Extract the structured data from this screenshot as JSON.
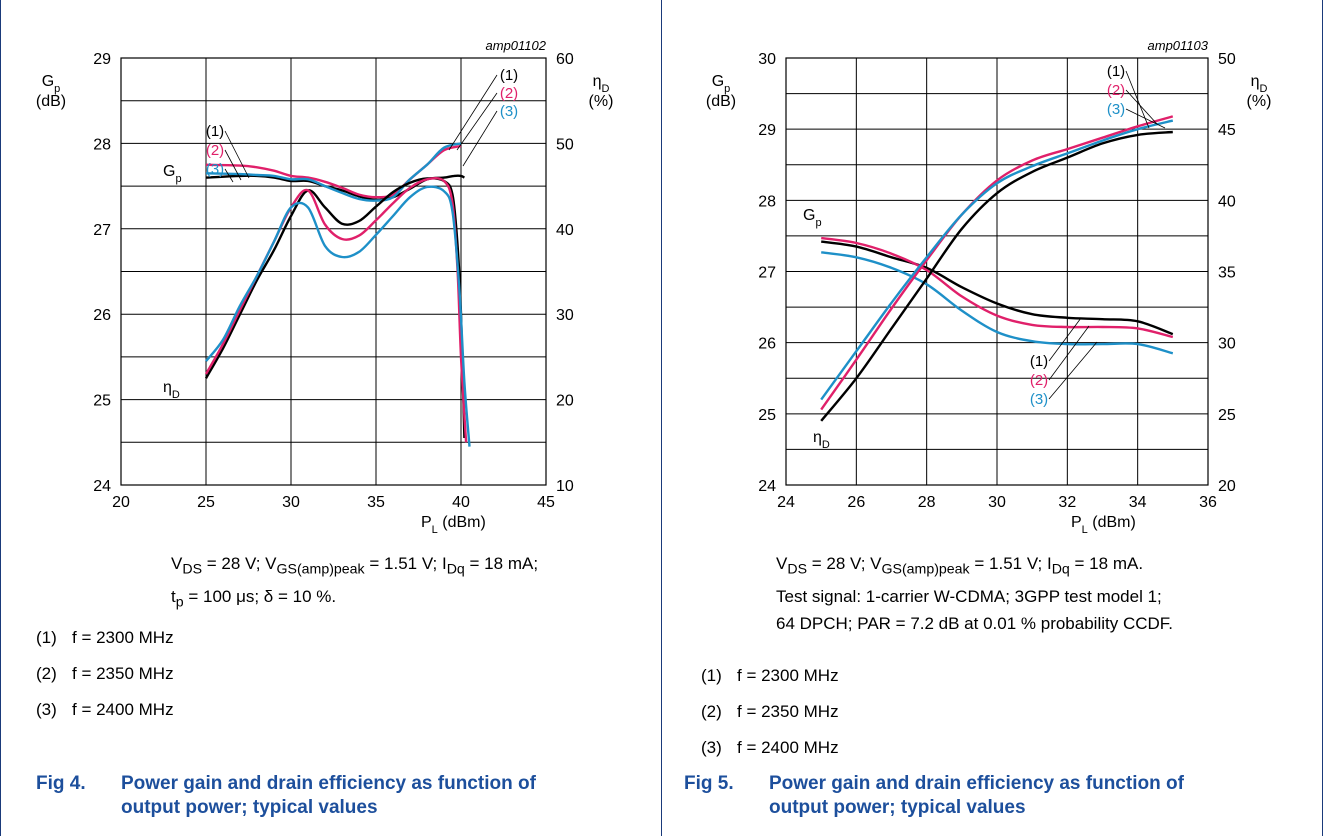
{
  "colors": {
    "c1": "#000000",
    "c2": "#e0206a",
    "c3": "#1e90c8",
    "figtitle": "#1d4f9c",
    "border": "#1a3a7a"
  },
  "fig4": {
    "fig_label": "Fig 4.",
    "fig_title": "Power gain and drain efficiency as function of output power; typical values",
    "cond_line1_html": "V<sub>DS</sub> = 28 V; V<sub>GS(amp)peak</sub> = 1.51 V; I<sub>Dq</sub> = 18 mA;",
    "cond_line2_html": "t<sub>p</sub> = 100 μs; δ = 10 %.",
    "list": [
      {
        "n": "(1)",
        "text": "f = 2300 MHz"
      },
      {
        "n": "(2)",
        "text": "f = 2350 MHz"
      },
      {
        "n": "(3)",
        "text": "f = 2400 MHz"
      }
    ],
    "chart_data": {
      "type": "line",
      "code": "amp01102",
      "xlabel_html": "P<tspan baseline-shift='sub' font-size='11'>L</tspan> (dBm)",
      "ylabel_left_html": [
        "G<tspan baseline-shift='sub' font-size='11'>p</tspan>",
        "(dB)"
      ],
      "ylabel_right_html": [
        "η<tspan baseline-shift='sub' font-size='11'>D</tspan>",
        "(%)"
      ],
      "xlim": [
        20,
        45
      ],
      "ylim_left": [
        24,
        29
      ],
      "ylim_right": [
        10,
        60
      ],
      "x_ticks": [
        20,
        25,
        30,
        35,
        40,
        45
      ],
      "y_left_ticks": [
        24,
        25,
        26,
        27,
        28,
        29
      ],
      "y_right_ticks": [
        10,
        20,
        30,
        40,
        50,
        60
      ],
      "grid": true,
      "labels": {
        "gp": "G<tspan baseline-shift='sub' font-size='11'>p</tspan>",
        "eta": "η<tspan baseline-shift='sub' font-size='11'>D</tspan>",
        "n1": "(1)",
        "n2": "(2)",
        "n3": "(3)"
      },
      "series": [
        {
          "name": "(1)",
          "group": "Gp",
          "axis": "left",
          "color": "#000000",
          "x": [
            25,
            27,
            28,
            29,
            30,
            31,
            32,
            33,
            34,
            35,
            36,
            37,
            38,
            39,
            39.6,
            40,
            40.2
          ],
          "y": [
            27.6,
            27.62,
            27.62,
            27.6,
            27.56,
            27.56,
            27.5,
            27.45,
            27.38,
            27.34,
            27.37,
            27.47,
            27.58,
            27.6,
            27.62,
            27.62,
            27.6
          ]
        },
        {
          "name": "(2)",
          "group": "Gp",
          "axis": "left",
          "color": "#e0206a",
          "x": [
            25,
            27,
            28,
            29,
            30,
            31,
            32,
            33,
            34,
            35,
            36,
            37,
            38,
            39,
            40
          ],
          "y": [
            27.75,
            27.74,
            27.72,
            27.68,
            27.62,
            27.6,
            27.55,
            27.48,
            27.4,
            27.37,
            27.4,
            27.58,
            27.75,
            27.92,
            27.97
          ]
        },
        {
          "name": "(3)",
          "group": "Gp",
          "axis": "left",
          "color": "#1e90c8",
          "x": [
            25,
            27,
            28,
            29,
            30,
            31,
            32,
            33,
            34,
            35,
            36,
            37,
            38,
            39,
            40
          ],
          "y": [
            27.65,
            27.64,
            27.63,
            27.62,
            27.58,
            27.58,
            27.5,
            27.42,
            27.35,
            27.33,
            27.37,
            27.58,
            27.75,
            27.95,
            28.0
          ]
        },
        {
          "name": "(1)",
          "group": "eta",
          "axis": "right",
          "color": "#000000",
          "x": [
            25,
            26,
            27,
            28,
            29,
            30,
            31,
            32,
            33,
            34,
            35,
            36,
            37,
            38,
            39,
            39.5,
            39.8,
            40,
            40.2
          ],
          "y": [
            22.5,
            26,
            30,
            34,
            37.5,
            41.5,
            44.5,
            42.5,
            40.6,
            40.9,
            42.6,
            44.3,
            45.4,
            45.9,
            45.6,
            44,
            38,
            30,
            15.5
          ]
        },
        {
          "name": "(2)",
          "group": "eta",
          "axis": "right",
          "color": "#e0206a",
          "x": [
            25,
            26,
            27,
            28,
            29,
            30,
            31,
            32,
            33,
            34,
            35,
            36,
            37,
            38,
            39,
            39.5,
            39.8,
            40,
            40.3
          ],
          "y": [
            23,
            26.5,
            30.5,
            34.5,
            38.5,
            42.5,
            44.5,
            40.5,
            38.8,
            39.2,
            41,
            43,
            44.8,
            45.8,
            45.6,
            43,
            35,
            25,
            15
          ]
        },
        {
          "name": "(3)",
          "group": "eta",
          "axis": "right",
          "color": "#1e90c8",
          "x": [
            25,
            26,
            27,
            28,
            29,
            30,
            31,
            32,
            33,
            34,
            35,
            36,
            37,
            38,
            39,
            39.5,
            39.9,
            40.2,
            40.5
          ],
          "y": [
            24.5,
            27,
            31,
            34.5,
            38.5,
            42.5,
            42.5,
            38,
            36.7,
            37.3,
            39.3,
            41.5,
            43.7,
            44.9,
            44.4,
            42,
            33,
            22,
            14.5
          ]
        }
      ]
    }
  },
  "fig5": {
    "fig_label": "Fig 5.",
    "fig_title": "Power gain and drain efficiency as function of output power; typical values",
    "cond_line1_html": "V<sub>DS</sub> = 28 V; V<sub>GS(amp)peak</sub> = 1.51 V; I<sub>Dq</sub> = 18 mA.",
    "cond_line2_html": "Test signal: 1-carrier W-CDMA; 3GPP test model 1;",
    "cond_line3_html": "64 DPCH; PAR = 7.2 dB at 0.01 % probability CCDF.",
    "list": [
      {
        "n": "(1)",
        "text": "f = 2300 MHz"
      },
      {
        "n": "(2)",
        "text": "f = 2350 MHz"
      },
      {
        "n": "(3)",
        "text": "f = 2400 MHz"
      }
    ],
    "chart_data": {
      "type": "line",
      "code": "amp01103",
      "xlabel_html": "P<tspan baseline-shift='sub' font-size='11'>L</tspan> (dBm)",
      "ylabel_left_html": [
        "G<tspan baseline-shift='sub' font-size='11'>p</tspan>",
        "(dB)"
      ],
      "ylabel_right_html": [
        "η<tspan baseline-shift='sub' font-size='11'>D</tspan>",
        "(%)"
      ],
      "xlim": [
        24,
        36
      ],
      "ylim_left": [
        24,
        30
      ],
      "ylim_right": [
        20,
        50
      ],
      "x_ticks": [
        24,
        26,
        28,
        30,
        32,
        34,
        36
      ],
      "y_left_ticks": [
        24,
        25,
        26,
        27,
        28,
        29,
        30
      ],
      "y_right_ticks": [
        20,
        25,
        30,
        35,
        40,
        45,
        50
      ],
      "grid": true,
      "labels": {
        "gp": "G<tspan baseline-shift='sub' font-size='11'>p</tspan>",
        "eta": "η<tspan baseline-shift='sub' font-size='11'>D</tspan>",
        "n1": "(1)",
        "n2": "(2)",
        "n3": "(3)"
      },
      "series": [
        {
          "name": "(1)",
          "group": "Gp",
          "axis": "left",
          "color": "#000000",
          "x": [
            25,
            26,
            27,
            28,
            29,
            30,
            31,
            32,
            33,
            34,
            35
          ],
          "y": [
            27.42,
            27.35,
            27.2,
            27.05,
            26.78,
            26.55,
            26.4,
            26.35,
            26.33,
            26.3,
            26.12
          ]
        },
        {
          "name": "(2)",
          "group": "Gp",
          "axis": "left",
          "color": "#e0206a",
          "x": [
            25,
            26,
            27,
            28,
            29,
            30,
            31,
            32,
            33,
            34,
            35
          ],
          "y": [
            27.47,
            27.4,
            27.25,
            27.02,
            26.65,
            26.38,
            26.25,
            26.22,
            26.22,
            26.2,
            26.08
          ]
        },
        {
          "name": "(3)",
          "group": "Gp",
          "axis": "left",
          "color": "#1e90c8",
          "x": [
            25,
            26,
            27,
            28,
            29,
            30,
            31,
            32,
            33,
            34,
            35
          ],
          "y": [
            27.27,
            27.2,
            27.05,
            26.82,
            26.45,
            26.15,
            26.02,
            25.98,
            25.98,
            25.98,
            25.85
          ]
        },
        {
          "name": "(1)",
          "group": "eta",
          "axis": "right",
          "color": "#000000",
          "x": [
            25,
            26,
            27,
            28,
            29,
            30,
            31,
            32,
            33,
            34,
            35
          ],
          "y": [
            24.5,
            27.5,
            31,
            34.5,
            38,
            40.5,
            42,
            43,
            44,
            44.6,
            44.8
          ]
        },
        {
          "name": "(2)",
          "group": "eta",
          "axis": "right",
          "color": "#e0206a",
          "x": [
            25,
            26,
            27,
            28,
            29,
            30,
            31,
            32,
            33,
            34,
            35
          ],
          "y": [
            25.3,
            28.8,
            32.4,
            35.8,
            39,
            41.4,
            42.8,
            43.6,
            44.4,
            45.2,
            45.9
          ]
        },
        {
          "name": "(3)",
          "group": "eta",
          "axis": "right",
          "color": "#1e90c8",
          "x": [
            25,
            26,
            27,
            28,
            29,
            30,
            31,
            32,
            33,
            34,
            35
          ],
          "y": [
            26,
            29.4,
            32.8,
            36,
            39,
            41.2,
            42.4,
            43.3,
            44.2,
            45,
            45.6
          ]
        }
      ]
    }
  }
}
